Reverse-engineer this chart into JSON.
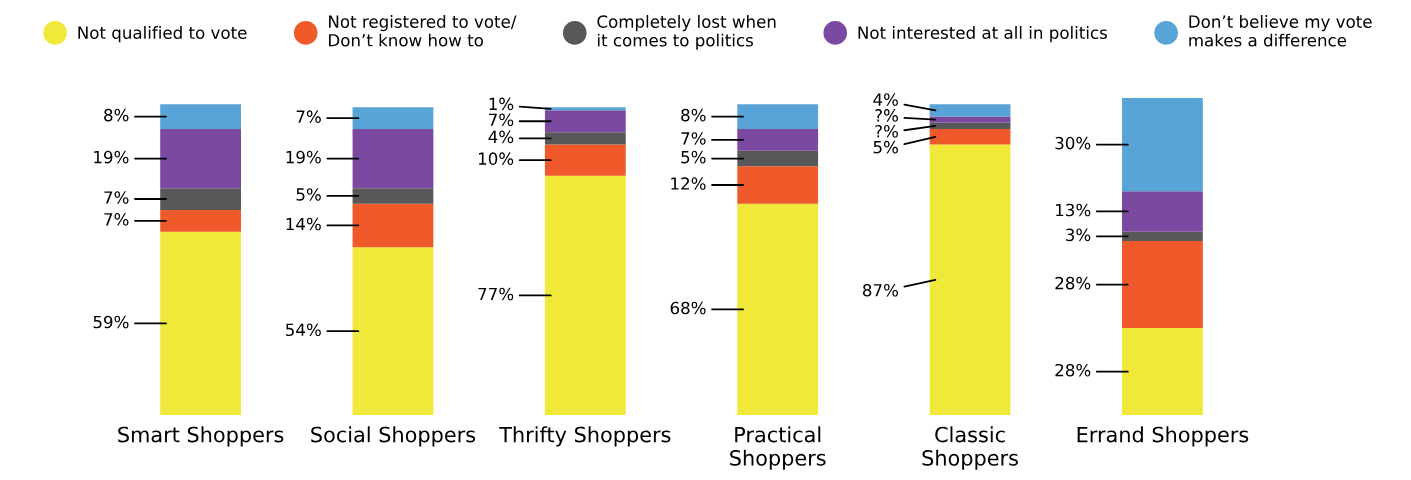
{
  "chart_data": {
    "type": "bar",
    "stacked": true,
    "legend": "top",
    "categories": [
      "Smart Shoppers",
      "Social Shoppers",
      "Thrifty Shoppers",
      "Practical\nShoppers",
      "Classic\nShoppers",
      "Errand Shoppers"
    ],
    "series": [
      {
        "name": "Not qualified to vote",
        "color": "#f0e93a",
        "values": [
          59,
          54,
          77,
          68,
          87,
          28
        ],
        "value_labels": [
          "59%",
          "54%",
          "77%",
          "68%",
          "87%",
          "28%"
        ]
      },
      {
        "name": "Not registered to vote/\nDon’t know how to",
        "color": "#f05a2a",
        "values": [
          7,
          14,
          10,
          12,
          5,
          28
        ],
        "value_labels": [
          "7%",
          "14%",
          "10%",
          "12%",
          "5%",
          "28%"
        ]
      },
      {
        "name": "Completely lost when\nit comes to politics",
        "color": "#58585a",
        "values": [
          7,
          5,
          4,
          5,
          2,
          3
        ],
        "value_labels": [
          "7%",
          "5%",
          "4%",
          "5%",
          "?%",
          "3%"
        ]
      },
      {
        "name": "Not interested at all in politics",
        "color": "#7b4aa0",
        "values": [
          19,
          19,
          7,
          7,
          2,
          13
        ],
        "value_labels": [
          "19%",
          "19%",
          "7%",
          "7%",
          "?%",
          "13%"
        ]
      },
      {
        "name": "Don’t believe my vote\nmakes a difference",
        "color": "#58a4d6",
        "values": [
          8,
          7,
          1,
          8,
          4,
          30
        ],
        "value_labels": [
          "8%",
          "7%",
          "1%",
          "8%",
          "4%",
          "30%"
        ]
      }
    ]
  }
}
